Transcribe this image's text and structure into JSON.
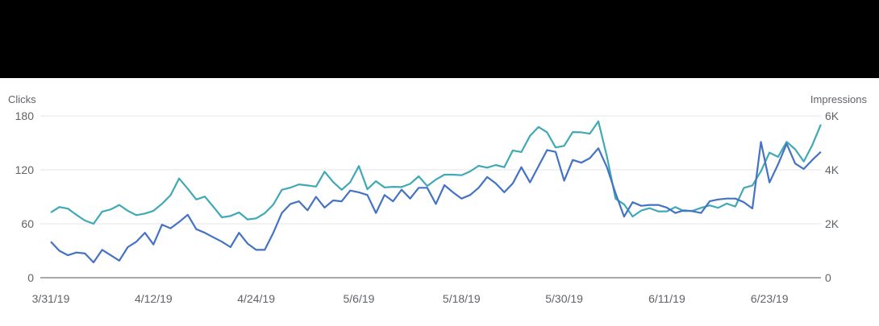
{
  "chart_data": {
    "type": "line",
    "title": "",
    "left_axis": {
      "label": "Clicks",
      "ticks": [
        0,
        60,
        120,
        180
      ],
      "tick_labels": [
        "0",
        "60",
        "120",
        "180"
      ],
      "range": [
        0,
        180
      ]
    },
    "right_axis": {
      "label": "Impressions",
      "ticks": [
        0,
        2000,
        4000,
        6000
      ],
      "tick_labels": [
        "0",
        "2K",
        "4K",
        "6K"
      ],
      "range": [
        0,
        6000
      ]
    },
    "x_tick_labels": [
      "3/31/19",
      "4/12/19",
      "4/24/19",
      "5/6/19",
      "5/18/19",
      "5/30/19",
      "6/11/19",
      "6/23/19"
    ],
    "x_range": [
      "3/31/19",
      "6/30/19"
    ],
    "grid": true,
    "legend": "none",
    "colors": {
      "clicks": "#4472c4",
      "impressions": "#3fa9b5",
      "grid": "#e6e6e6",
      "axis": "#757575"
    },
    "series": [
      {
        "name": "Clicks",
        "axis": "left",
        "values": [
          40,
          30,
          25,
          28,
          27,
          17,
          31,
          25,
          19,
          34,
          40,
          50,
          37,
          59,
          55,
          62,
          70,
          54,
          50,
          45,
          40,
          34,
          50,
          38,
          31,
          31,
          50,
          72,
          82,
          85,
          75,
          90,
          78,
          86,
          85,
          97,
          95,
          92,
          72,
          92,
          85,
          98,
          88,
          100,
          100,
          82,
          103,
          95,
          88,
          92,
          100,
          112,
          105,
          95,
          105,
          123,
          106,
          124,
          142,
          140,
          108,
          131,
          128,
          133,
          144,
          123,
          94,
          68,
          84,
          80,
          81,
          81,
          78,
          72,
          75,
          74,
          72,
          85,
          87,
          88,
          88,
          84,
          77,
          151,
          106,
          126,
          149,
          127,
          121,
          131,
          140
        ]
      },
      {
        "name": "Impressions",
        "axis": "right",
        "values": [
          2420,
          2620,
          2560,
          2330,
          2120,
          2000,
          2450,
          2530,
          2700,
          2480,
          2320,
          2380,
          2480,
          2740,
          3060,
          3680,
          3300,
          2900,
          3010,
          2630,
          2240,
          2290,
          2420,
          2160,
          2200,
          2390,
          2710,
          3260,
          3340,
          3460,
          3420,
          3380,
          3930,
          3550,
          3260,
          3540,
          4140,
          3280,
          3580,
          3350,
          3370,
          3360,
          3480,
          3760,
          3400,
          3640,
          3820,
          3820,
          3800,
          3940,
          4150,
          4080,
          4180,
          4100,
          4720,
          4660,
          5260,
          5590,
          5390,
          4830,
          4890,
          5400,
          5390,
          5340,
          5800,
          4500,
          2930,
          2720,
          2270,
          2490,
          2580,
          2460,
          2460,
          2620,
          2470,
          2480,
          2590,
          2680,
          2590,
          2750,
          2640,
          3330,
          3420,
          3950,
          4640,
          4480,
          5040,
          4760,
          4310,
          4920,
          5680
        ]
      }
    ]
  }
}
